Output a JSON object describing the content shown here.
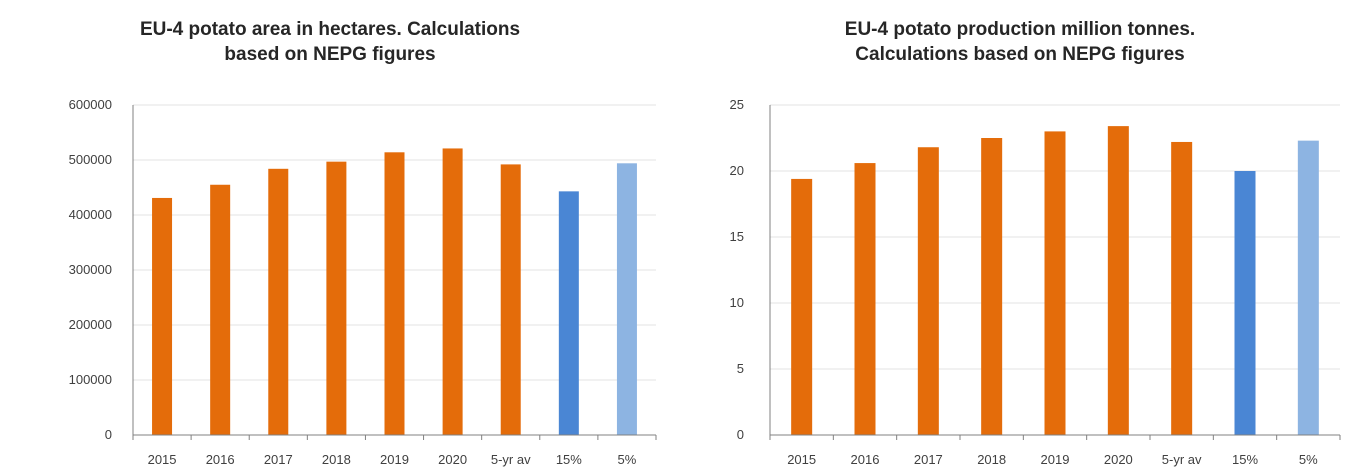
{
  "chart_data": [
    {
      "type": "bar",
      "title": "EU-4 potato area in hectares. Calculations\nbased on NEPG figures",
      "categories": [
        "2015",
        "2016",
        "2017",
        "2018",
        "2019",
        "2020",
        "5-yr av",
        "15%",
        "5%"
      ],
      "values": [
        431000,
        455000,
        484000,
        497000,
        514000,
        521000,
        492000,
        443000,
        494000
      ],
      "bar_colors": [
        "#E46C0A",
        "#E46C0A",
        "#E46C0A",
        "#E46C0A",
        "#E46C0A",
        "#E46C0A",
        "#E46C0A",
        "#4A86D4",
        "#8DB4E2"
      ],
      "y_ticks": [
        "0",
        "100000",
        "200000",
        "300000",
        "400000",
        "500000",
        "600000"
      ],
      "ylim": [
        0,
        600000
      ],
      "grid": true,
      "legend": "none"
    },
    {
      "type": "bar",
      "title": "EU-4 potato production million tonnes.\nCalculations based on NEPG figures",
      "categories": [
        "2015",
        "2016",
        "2017",
        "2018",
        "2019",
        "2020",
        "5-yr av",
        "15%",
        "5%"
      ],
      "values": [
        19.4,
        20.6,
        21.8,
        22.5,
        23.0,
        23.4,
        22.2,
        20.0,
        22.3
      ],
      "bar_colors": [
        "#E46C0A",
        "#E46C0A",
        "#E46C0A",
        "#E46C0A",
        "#E46C0A",
        "#E46C0A",
        "#E46C0A",
        "#4A86D4",
        "#8DB4E2"
      ],
      "y_ticks": [
        "0",
        "5",
        "10",
        "15",
        "20",
        "25"
      ],
      "ylim": [
        0,
        25
      ],
      "grid": true,
      "legend": "none"
    }
  ]
}
